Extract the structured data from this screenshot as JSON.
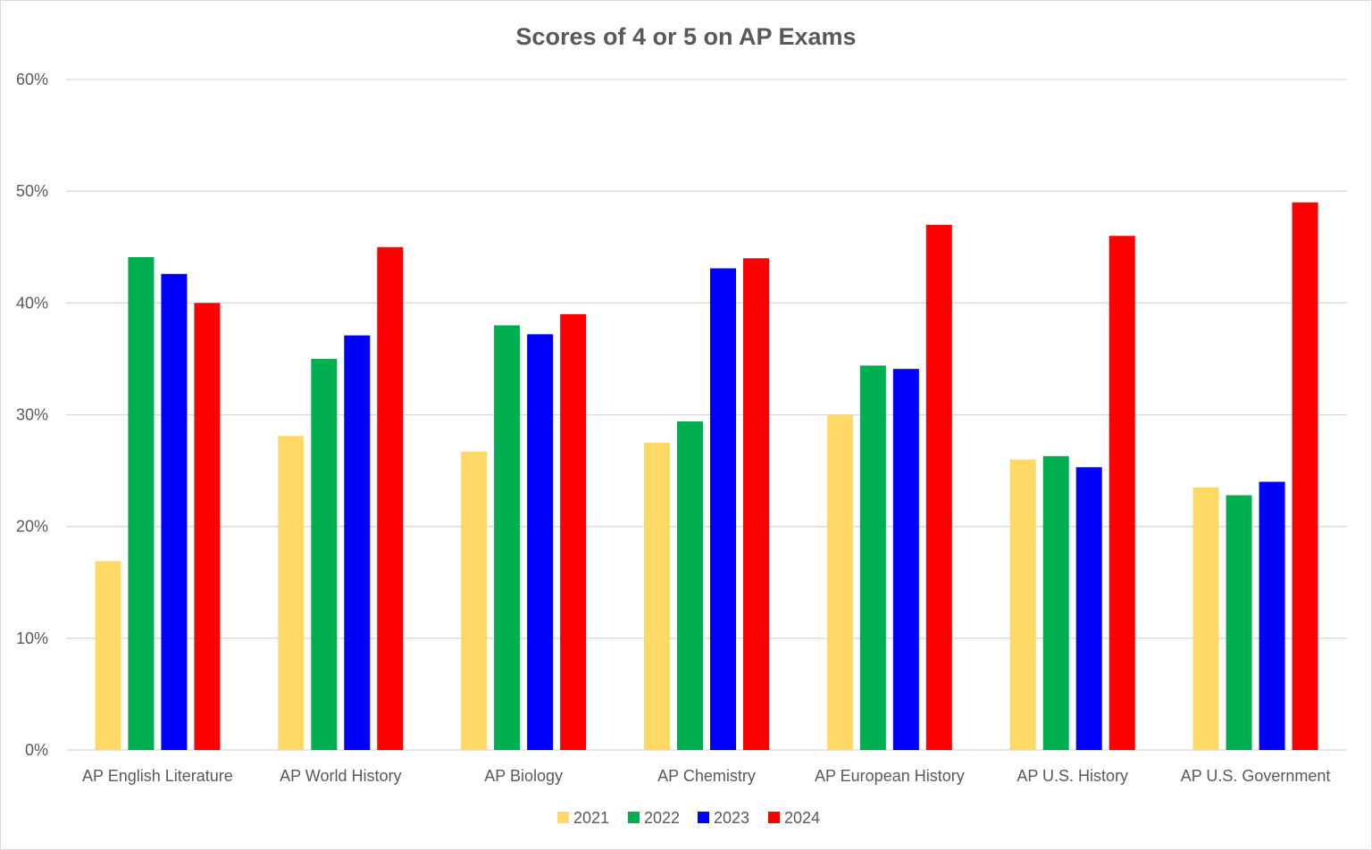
{
  "chart_data": {
    "type": "bar",
    "title": "Scores of 4 or 5 on AP Exams",
    "xlabel": "",
    "ylabel": "",
    "ylim": [
      0,
      60
    ],
    "yticks": [
      "0%",
      "10%",
      "20%",
      "30%",
      "40%",
      "50%",
      "60%"
    ],
    "grid": true,
    "legend": "bottom",
    "categories": [
      "AP English Literature",
      "AP World History",
      "AP Biology",
      "AP Chemistry",
      "AP European History",
      "AP U.S. History",
      "AP U.S. Government"
    ],
    "series": [
      {
        "name": "2021",
        "color": "#FFD966",
        "values": [
          16.9,
          28.1,
          26.7,
          27.5,
          30.0,
          26.0,
          23.5
        ]
      },
      {
        "name": "2022",
        "color": "#00B050",
        "values": [
          44.1,
          35.0,
          38.0,
          29.4,
          34.4,
          26.3,
          22.8
        ]
      },
      {
        "name": "2023",
        "color": "#0000FF",
        "values": [
          42.6,
          37.1,
          37.2,
          43.1,
          34.1,
          25.3,
          24.0
        ]
      },
      {
        "name": "2024",
        "color": "#FF0000",
        "values": [
          40.0,
          45.0,
          39.0,
          44.0,
          47.0,
          46.0,
          49.0
        ]
      }
    ]
  }
}
